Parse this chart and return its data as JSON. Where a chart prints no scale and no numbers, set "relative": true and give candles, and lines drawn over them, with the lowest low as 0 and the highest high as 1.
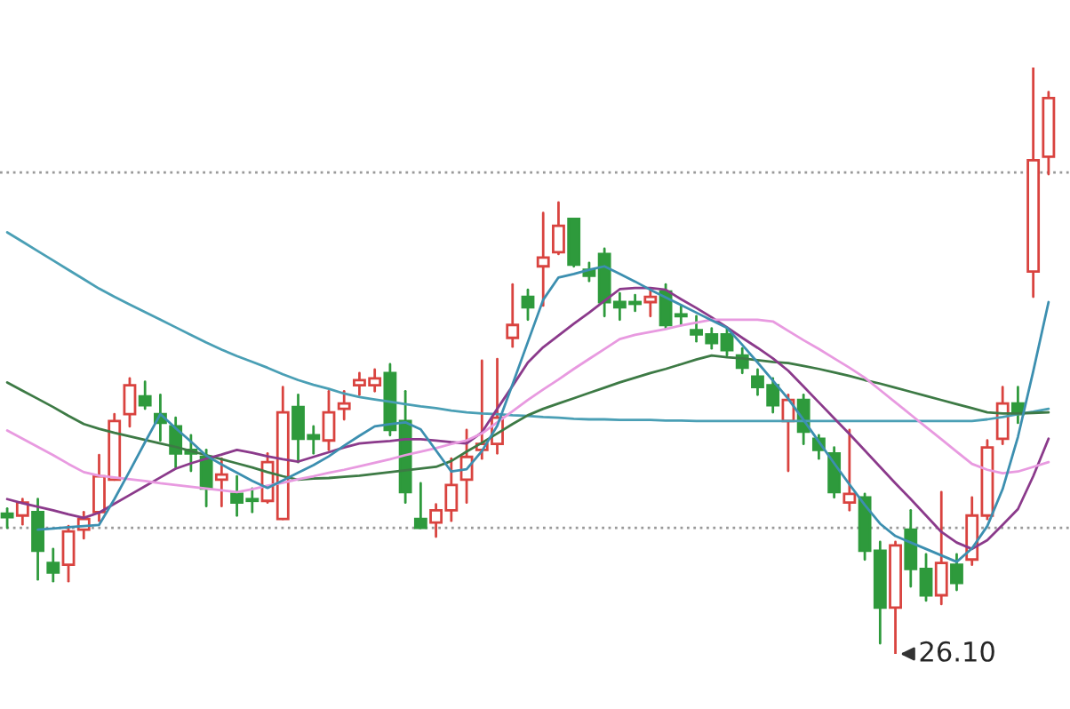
{
  "chart_data": {
    "type": "candlestick",
    "relative": true,
    "categories": [
      null,
      null,
      null,
      null,
      null,
      null,
      null,
      null,
      null,
      null,
      null,
      null,
      null,
      null,
      null,
      null,
      null,
      null,
      null,
      null,
      null,
      null,
      null,
      null,
      null,
      null,
      null,
      null,
      null,
      null,
      null,
      null,
      null,
      null,
      null,
      null,
      null,
      null,
      null,
      null,
      null,
      null,
      null,
      null,
      null,
      null,
      null,
      null,
      null,
      null,
      null,
      null,
      null,
      null,
      null,
      null,
      null,
      null,
      null,
      null,
      null,
      null,
      null,
      null,
      null,
      null,
      null,
      null,
      null
    ],
    "ohlc": [
      [
        0.239,
        0.248,
        0.215,
        0.233
      ],
      [
        0.236,
        0.264,
        0.221,
        0.258
      ],
      [
        0.242,
        0.264,
        0.127,
        0.176
      ],
      [
        0.155,
        0.179,
        0.124,
        0.139
      ],
      [
        0.152,
        0.218,
        0.124,
        0.209
      ],
      [
        0.212,
        0.242,
        0.197,
        0.23
      ],
      [
        0.242,
        0.339,
        0.227,
        0.303
      ],
      [
        0.297,
        0.409,
        0.297,
        0.397
      ],
      [
        0.409,
        0.47,
        0.388,
        0.458
      ],
      [
        0.439,
        0.464,
        0.418,
        0.424
      ],
      [
        0.409,
        0.442,
        0.364,
        0.394
      ],
      [
        0.388,
        0.403,
        0.318,
        0.342
      ],
      [
        0.348,
        0.373,
        0.312,
        0.342
      ],
      [
        0.336,
        0.348,
        0.252,
        0.282
      ],
      [
        0.297,
        0.333,
        0.252,
        0.306
      ],
      [
        0.273,
        0.303,
        0.236,
        0.258
      ],
      [
        0.264,
        0.282,
        0.242,
        0.261
      ],
      [
        0.261,
        0.342,
        0.258,
        0.327
      ],
      [
        0.23,
        0.455,
        0.23,
        0.412
      ],
      [
        0.421,
        0.442,
        0.327,
        0.367
      ],
      [
        0.373,
        0.388,
        0.342,
        0.367
      ],
      [
        0.364,
        0.448,
        0.348,
        0.412
      ],
      [
        0.418,
        0.448,
        0.4,
        0.427
      ],
      [
        0.458,
        0.479,
        0.442,
        0.467
      ],
      [
        0.458,
        0.485,
        0.448,
        0.47
      ],
      [
        0.479,
        0.494,
        0.373,
        0.382
      ],
      [
        0.397,
        0.448,
        0.258,
        0.276
      ],
      [
        0.23,
        0.291,
        0.215,
        0.215
      ],
      [
        0.224,
        0.255,
        0.2,
        0.245
      ],
      [
        0.245,
        0.333,
        0.227,
        0.288
      ],
      [
        0.297,
        0.382,
        0.258,
        0.336
      ],
      [
        0.348,
        0.5,
        0.333,
        0.358
      ],
      [
        0.358,
        0.503,
        0.342,
        0.403
      ],
      [
        0.539,
        0.63,
        0.524,
        0.561
      ],
      [
        0.609,
        0.621,
        0.57,
        0.591
      ],
      [
        0.661,
        0.752,
        0.594,
        0.676
      ],
      [
        0.685,
        0.77,
        0.682,
        0.73
      ],
      [
        0.742,
        0.742,
        0.661,
        0.664
      ],
      [
        0.655,
        0.667,
        0.636,
        0.645
      ],
      [
        0.682,
        0.691,
        0.576,
        0.6
      ],
      [
        0.6,
        0.615,
        0.57,
        0.591
      ],
      [
        0.6,
        0.612,
        0.585,
        0.597
      ],
      [
        0.6,
        0.621,
        0.576,
        0.609
      ],
      [
        0.618,
        0.63,
        0.555,
        0.561
      ],
      [
        0.579,
        0.594,
        0.561,
        0.576
      ],
      [
        0.552,
        0.576,
        0.533,
        0.545
      ],
      [
        0.545,
        0.555,
        0.521,
        0.53
      ],
      [
        0.545,
        0.555,
        0.509,
        0.518
      ],
      [
        0.509,
        0.521,
        0.479,
        0.488
      ],
      [
        0.473,
        0.485,
        0.442,
        0.455
      ],
      [
        0.458,
        0.47,
        0.412,
        0.424
      ],
      [
        0.397,
        0.442,
        0.312,
        0.433
      ],
      [
        0.433,
        0.442,
        0.358,
        0.379
      ],
      [
        0.367,
        0.373,
        0.333,
        0.348
      ],
      [
        0.342,
        0.352,
        0.267,
        0.276
      ],
      [
        0.258,
        0.382,
        0.245,
        0.273
      ],
      [
        0.267,
        0.273,
        0.161,
        0.176
      ],
      [
        0.176,
        0.191,
        0.018,
        0.079
      ],
      [
        0.079,
        0.191,
        0,
        0.185
      ],
      [
        0.212,
        0.245,
        0.115,
        0.145
      ],
      [
        0.145,
        0.17,
        0.091,
        0.1
      ],
      [
        0.1,
        0.276,
        0.085,
        0.155
      ],
      [
        0.152,
        0.17,
        0.109,
        0.121
      ],
      [
        0.161,
        0.267,
        0.152,
        0.236
      ],
      [
        0.236,
        0.364,
        0.23,
        0.352
      ],
      [
        0.367,
        0.455,
        0.358,
        0.427
      ],
      [
        0.427,
        0.455,
        0.394,
        0.409
      ],
      [
        0.652,
        1,
        0.609,
        0.842
      ],
      [
        0.848,
        0.958,
        0.818,
        0.948
      ]
    ],
    "series": [
      {
        "type": "line",
        "color": "#4a9fb5",
        "values": [
          0.719,
          0.703,
          0.687,
          0.671,
          0.655,
          0.639,
          0.623,
          0.609,
          0.596,
          0.583,
          0.57,
          0.557,
          0.544,
          0.531,
          0.519,
          0.508,
          0.498,
          0.488,
          0.477,
          0.467,
          0.459,
          0.452,
          0.444,
          0.438,
          0.434,
          0.43,
          0.426,
          0.422,
          0.419,
          0.415,
          0.412,
          0.41,
          0.409,
          0.407,
          0.406,
          0.404,
          0.403,
          0.401,
          0.4,
          0.4,
          0.399,
          0.399,
          0.399,
          0.398,
          0.398,
          0.397,
          0.397,
          0.397,
          0.397,
          0.397,
          0.397,
          0.397,
          0.397,
          0.397,
          0.397,
          0.397,
          0.397,
          0.397,
          0.397,
          0.397,
          0.397,
          0.397,
          0.397,
          0.397,
          0.4,
          0.404,
          0.409,
          0.413,
          0.418
        ]
      },
      {
        "type": "line",
        "color": "#3d7a45",
        "values": [
          0.463,
          0.449,
          0.435,
          0.421,
          0.406,
          0.392,
          0.384,
          0.377,
          0.371,
          0.365,
          0.359,
          0.353,
          0.346,
          0.339,
          0.332,
          0.325,
          0.318,
          0.31,
          0.303,
          0.297,
          0.299,
          0.3,
          0.302,
          0.304,
          0.307,
          0.31,
          0.313,
          0.316,
          0.319,
          0.329,
          0.345,
          0.36,
          0.376,
          0.392,
          0.407,
          0.418,
          0.427,
          0.436,
          0.445,
          0.454,
          0.463,
          0.471,
          0.479,
          0.486,
          0.494,
          0.502,
          0.509,
          0.506,
          0.504,
          0.501,
          0.498,
          0.496,
          0.491,
          0.486,
          0.48,
          0.474,
          0.467,
          0.461,
          0.454,
          0.447,
          0.44,
          0.433,
          0.426,
          0.419,
          0.412,
          0.41,
          0.41,
          0.411,
          0.412
        ]
      },
      {
        "type": "line",
        "color": "#8b3a8b",
        "values": [
          0.264,
          0.257,
          0.251,
          0.245,
          0.238,
          0.232,
          0.241,
          0.256,
          0.271,
          0.286,
          0.301,
          0.316,
          0.325,
          0.333,
          0.34,
          0.348,
          0.343,
          0.337,
          0.332,
          0.328,
          0.336,
          0.344,
          0.352,
          0.359,
          0.361,
          0.363,
          0.366,
          0.366,
          0.364,
          0.361,
          0.359,
          0.378,
          0.418,
          0.457,
          0.497,
          0.523,
          0.543,
          0.563,
          0.582,
          0.602,
          0.622,
          0.624,
          0.624,
          0.621,
          0.605,
          0.59,
          0.574,
          0.557,
          0.539,
          0.522,
          0.504,
          0.483,
          0.456,
          0.429,
          0.402,
          0.375,
          0.347,
          0.319,
          0.291,
          0.264,
          0.236,
          0.208,
          0.19,
          0.179,
          0.194,
          0.22,
          0.247,
          0.303,
          0.367
        ]
      },
      {
        "type": "line",
        "color": "#e89ae0",
        "values": [
          0.381,
          0.367,
          0.353,
          0.339,
          0.324,
          0.31,
          0.304,
          0.301,
          0.298,
          0.295,
          0.291,
          0.288,
          0.285,
          0.282,
          0.279,
          0.276,
          0.281,
          0.287,
          0.292,
          0.298,
          0.303,
          0.309,
          0.314,
          0.32,
          0.326,
          0.332,
          0.339,
          0.345,
          0.351,
          0.358,
          0.364,
          0.376,
          0.395,
          0.414,
          0.433,
          0.451,
          0.468,
          0.486,
          0.503,
          0.52,
          0.537,
          0.544,
          0.549,
          0.554,
          0.56,
          0.565,
          0.57,
          0.57,
          0.57,
          0.57,
          0.567,
          0.551,
          0.535,
          0.52,
          0.504,
          0.488,
          0.471,
          0.45,
          0.429,
          0.408,
          0.387,
          0.366,
          0.345,
          0.324,
          0.314,
          0.308,
          0.311,
          0.319,
          0.327
        ]
      },
      {
        "type": "line",
        "color": "#3c8fb0",
        "values": [
          null,
          null,
          0.212,
          0.214,
          0.216,
          0.218,
          0.22,
          0.264,
          0.312,
          0.361,
          0.409,
          0.385,
          0.362,
          0.338,
          0.323,
          0.309,
          0.295,
          0.283,
          0.296,
          0.309,
          0.322,
          0.337,
          0.355,
          0.372,
          0.388,
          0.392,
          0.395,
          0.383,
          0.347,
          0.311,
          0.315,
          0.346,
          0.389,
          0.46,
          0.532,
          0.604,
          0.642,
          0.648,
          0.655,
          0.661,
          0.648,
          0.635,
          0.621,
          0.608,
          0.595,
          0.582,
          0.569,
          0.556,
          0.527,
          0.497,
          0.466,
          0.435,
          0.399,
          0.362,
          0.325,
          0.289,
          0.254,
          0.222,
          0.201,
          0.19,
          0.179,
          0.168,
          0.157,
          0.18,
          0.218,
          0.281,
          0.37,
          0.482,
          0.6
        ]
      }
    ],
    "ref_lines": [
      {
        "axis": "y",
        "value": 0.821,
        "color": "#999999",
        "line_style": "dotted"
      },
      {
        "axis": "y",
        "value": 0.215,
        "color": "#999999",
        "line_style": "dotted"
      }
    ],
    "annotations": [
      "26.10"
    ]
  }
}
